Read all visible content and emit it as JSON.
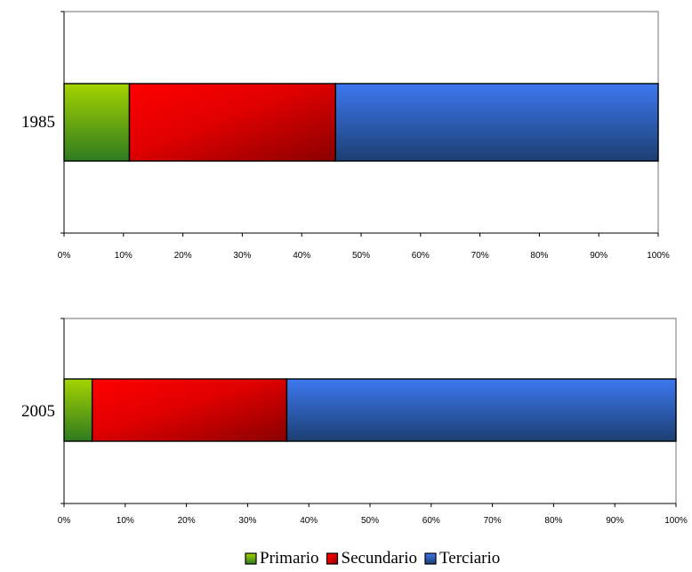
{
  "chart_data": [
    {
      "type": "bar",
      "orientation": "horizontal",
      "stacked": "percent",
      "categories": [
        "1985"
      ],
      "series": [
        {
          "name": "Primario",
          "values": [
            11
          ]
        },
        {
          "name": "Secundario",
          "values": [
            34.7
          ]
        },
        {
          "name": "Terciario",
          "values": [
            54.3
          ]
        }
      ],
      "xlim": [
        0,
        100
      ],
      "x_ticks": [
        "0%",
        "10%",
        "20%",
        "30%",
        "40%",
        "50%",
        "60%",
        "70%",
        "80%",
        "90%",
        "100%"
      ],
      "grid": false
    },
    {
      "type": "bar",
      "orientation": "horizontal",
      "stacked": "percent",
      "categories": [
        "2005"
      ],
      "series": [
        {
          "name": "Primario",
          "values": [
            4.6
          ]
        },
        {
          "name": "Secundario",
          "values": [
            31.8
          ]
        },
        {
          "name": "Terciario",
          "values": [
            63.6
          ]
        }
      ],
      "xlim": [
        0,
        100
      ],
      "x_ticks": [
        "0%",
        "10%",
        "20%",
        "30%",
        "40%",
        "50%",
        "60%",
        "70%",
        "80%",
        "90%",
        "100%"
      ],
      "grid": false
    }
  ],
  "legend": {
    "placement": "bottom",
    "items": [
      {
        "name": "Primario",
        "color": "#8fc31f"
      },
      {
        "name": "Secundario",
        "color": "#ff0000"
      },
      {
        "name": "Terciario",
        "color": "#3a6fe0"
      }
    ]
  }
}
